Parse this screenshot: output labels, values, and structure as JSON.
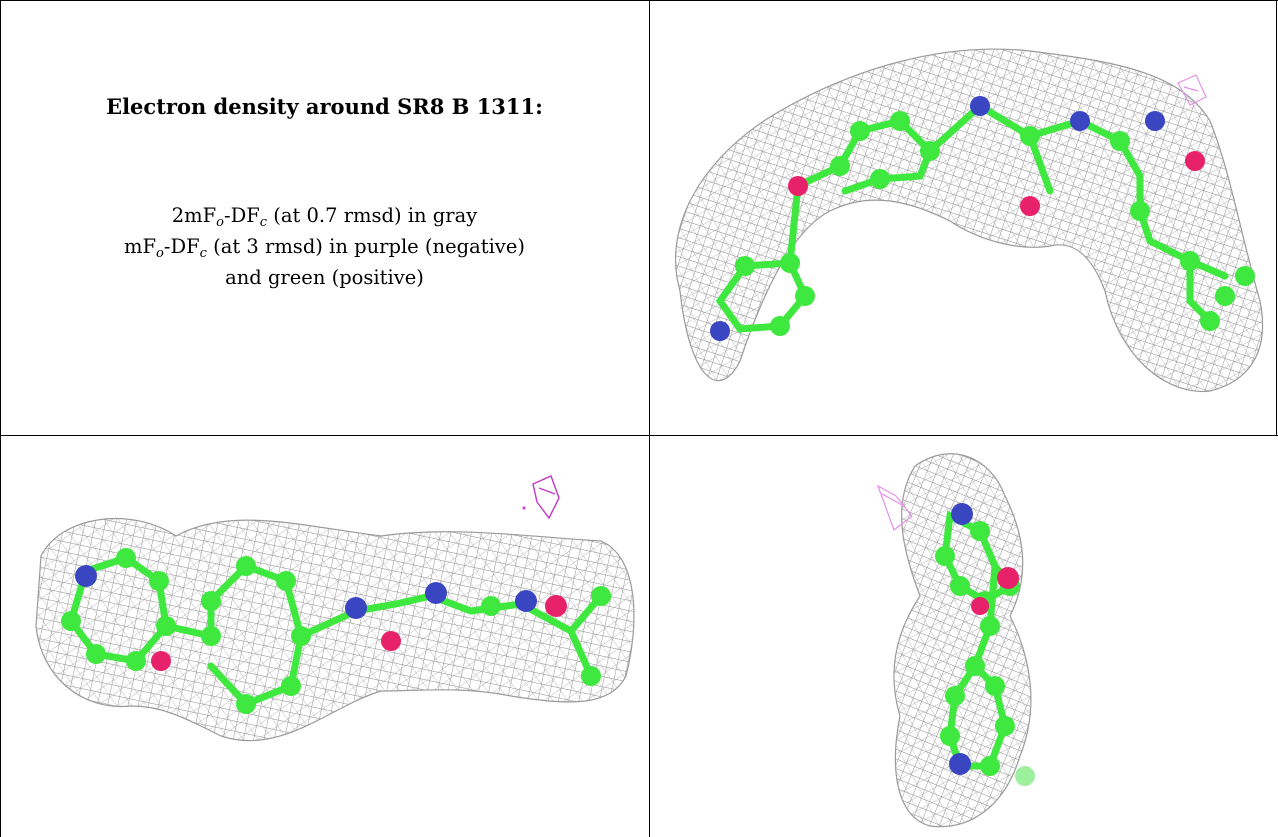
{
  "header": {
    "title": "Electron density around SR8 B 1311:"
  },
  "legend": {
    "line1": {
      "pre": "2mF",
      "sub1": "o",
      "mid": "-DF",
      "sub2": "c",
      "post": " (at 0.7 rmsd) in gray"
    },
    "line2": {
      "pre": "mF",
      "sub1": "o",
      "mid": "-DF",
      "sub2": "c",
      "post": " (at 3 rmsd) in purple (negative)"
    },
    "line3": "and green (positive)"
  },
  "colors": {
    "mesh": "#8c8c8c",
    "carbon": "#3ee83e",
    "nitrogen": "#3a45c2",
    "oxygen": "#e8216b",
    "negative_density": "#c437c8",
    "negative_density_light": "#e590e8"
  },
  "views": [
    {
      "name": "view-top-right"
    },
    {
      "name": "view-bottom-left"
    },
    {
      "name": "view-bottom-right"
    }
  ]
}
